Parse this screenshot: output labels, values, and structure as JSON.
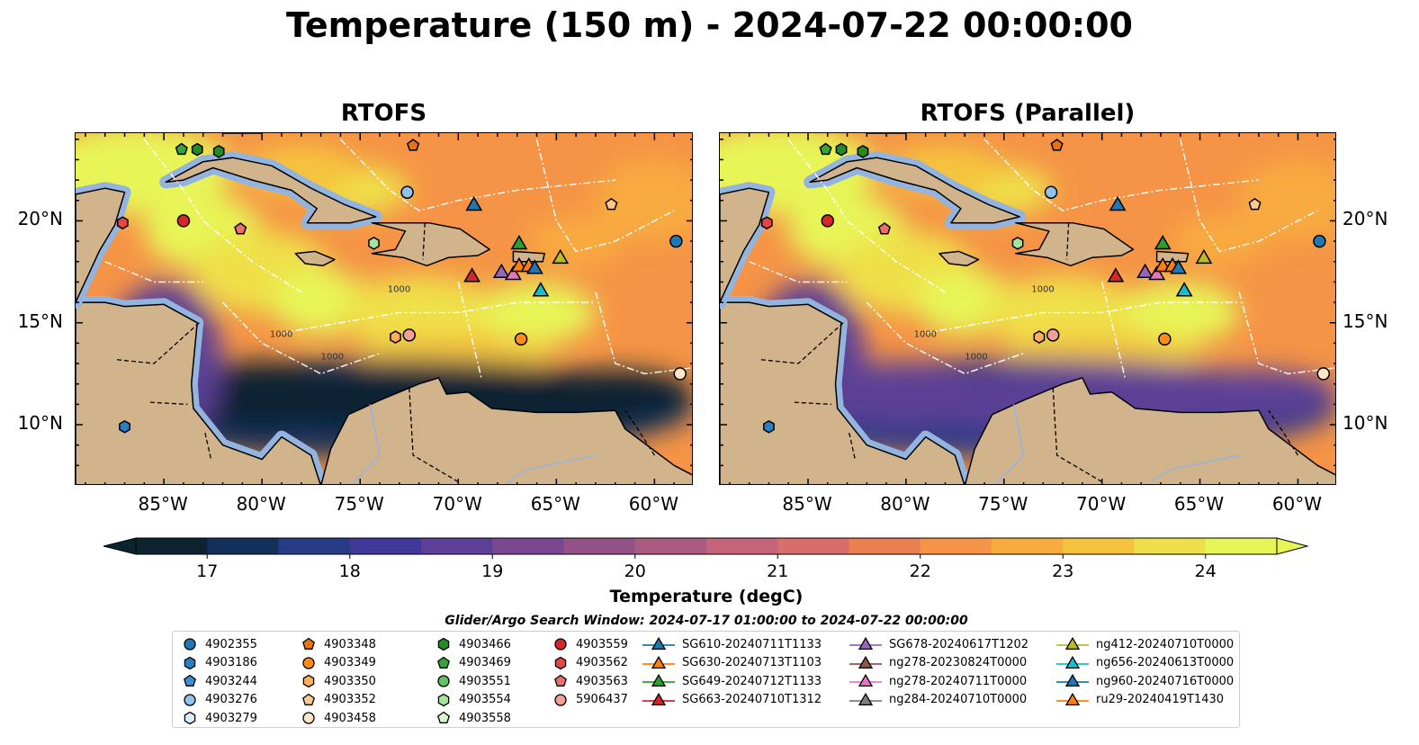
{
  "title": "Temperature (150 m) - 2024-07-22 00:00:00",
  "panels": [
    {
      "title": "RTOFS"
    },
    {
      "title": "RTOFS (Parallel)"
    }
  ],
  "axes": {
    "lon_labels": [
      "85°W",
      "80°W",
      "75°W",
      "70°W",
      "65°W",
      "60°W"
    ],
    "lat_labels": [
      "20°N",
      "15°N",
      "10°N"
    ]
  },
  "contour_labels": [
    "1000",
    "1000",
    "1000"
  ],
  "colorbar": {
    "label": "Temperature (degC)",
    "ticks": [
      "17",
      "18",
      "19",
      "20",
      "21",
      "22",
      "23",
      "24"
    ],
    "min": 16.5,
    "max": 24.5,
    "extend": "both",
    "colors": [
      "#0c2330",
      "#14305a",
      "#283b85",
      "#42389a",
      "#5c3f96",
      "#7a4890",
      "#935286",
      "#ac5b80",
      "#c4637a",
      "#d86e6b",
      "#ec8050",
      "#f59446",
      "#f8ab3f",
      "#f5c43e",
      "#efe04a",
      "#e7f556"
    ]
  },
  "search_window": "Glider/Argo Search Window: 2024-07-17 01:00:00 to 2024-07-22 00:00:00",
  "legend": {
    "items": [
      {
        "label": "4902355",
        "marker": "circle",
        "color": "#1f77b4"
      },
      {
        "label": "4903186",
        "marker": "hexagon",
        "color": "#2a7fc0"
      },
      {
        "label": "4903244",
        "marker": "pentagon",
        "color": "#3b8fd0"
      },
      {
        "label": "4903276",
        "marker": "circle",
        "color": "#8fc3ee"
      },
      {
        "label": "4903279",
        "marker": "hexagon",
        "color": "#d9ecfb"
      },
      {
        "label": "4903348",
        "marker": "pentagon",
        "color": "#e8730c"
      },
      {
        "label": "4903349",
        "marker": "circle",
        "color": "#ff8c1a"
      },
      {
        "label": "4903350",
        "marker": "hexagon",
        "color": "#ffae5a"
      },
      {
        "label": "4903352",
        "marker": "pentagon",
        "color": "#ffc98e"
      },
      {
        "label": "4903458",
        "marker": "circle",
        "color": "#ffe6c8"
      },
      {
        "label": "4903466",
        "marker": "hexagon",
        "color": "#228b22"
      },
      {
        "label": "4903469",
        "marker": "pentagon",
        "color": "#37a43a"
      },
      {
        "label": "4903551",
        "marker": "circle",
        "color": "#5fc45f"
      },
      {
        "label": "4903554",
        "marker": "hexagon",
        "color": "#a3e39a"
      },
      {
        "label": "4903558",
        "marker": "pentagon",
        "color": "#d8f8cc"
      },
      {
        "label": "4903559",
        "marker": "circle",
        "color": "#d62728"
      },
      {
        "label": "4903562",
        "marker": "hexagon",
        "color": "#e04646"
      },
      {
        "label": "4903563",
        "marker": "pentagon",
        "color": "#ec6f6f"
      },
      {
        "label": "5906437",
        "marker": "circle",
        "color": "#f4a09a"
      },
      {
        "label": "SG610-20240711T1133",
        "marker": "triangle",
        "color": "#1f77b4"
      },
      {
        "label": "SG630-20240713T1103",
        "marker": "triangle",
        "color": "#ff7f0e"
      },
      {
        "label": "SG649-20240712T1133",
        "marker": "triangle",
        "color": "#2ca02c"
      },
      {
        "label": "SG663-20240710T1312",
        "marker": "triangle",
        "color": "#d62728"
      },
      {
        "label": "SG678-20240617T1202",
        "marker": "triangle",
        "color": "#9467bd"
      },
      {
        "label": "ng278-20230824T0000",
        "marker": "triangle",
        "color": "#8c564b"
      },
      {
        "label": "ng278-20240711T0000",
        "marker": "triangle",
        "color": "#e377c2"
      },
      {
        "label": "ng284-20240710T0000",
        "marker": "triangle",
        "color": "#7f7f7f"
      },
      {
        "label": "ng412-20240710T0000",
        "marker": "triangle",
        "color": "#bcbd22"
      },
      {
        "label": "ng656-20240613T0000",
        "marker": "triangle",
        "color": "#17becf"
      },
      {
        "label": "ng960-20240716T0000",
        "marker": "triangle",
        "color": "#1f77b4"
      },
      {
        "label": "ru29-20240419T1430",
        "marker": "triangle",
        "color": "#ff7f0e"
      }
    ]
  },
  "map": {
    "lon_range": [
      -89.5,
      -58.0
    ],
    "lat_range": [
      7.0,
      24.3
    ],
    "land_color": "#d2b48c",
    "shelf_color": "#94b4e0",
    "observations": [
      {
        "ref": "4902355",
        "lon": -58.9,
        "lat": 19.0
      },
      {
        "ref": "4903186",
        "lon": -87.0,
        "lat": 9.9
      },
      {
        "ref": "4903276",
        "lon": -72.6,
        "lat": 21.4
      },
      {
        "ref": "4903348",
        "lon": -72.3,
        "lat": 23.7
      },
      {
        "ref": "4903349",
        "lon": -66.8,
        "lat": 14.2
      },
      {
        "ref": "4903352",
        "lon": -62.2,
        "lat": 20.8
      },
      {
        "ref": "4903350",
        "lon": -73.2,
        "lat": 14.3
      },
      {
        "ref": "4903458",
        "lon": -58.7,
        "lat": 12.5
      },
      {
        "ref": "4903466",
        "lon": -83.3,
        "lat": 23.5
      },
      {
        "ref": "4903469",
        "lon": -84.1,
        "lat": 23.5
      },
      {
        "ref": "4903466",
        "lon": -82.2,
        "lat": 23.4
      },
      {
        "ref": "4903554",
        "lon": -74.3,
        "lat": 18.9
      },
      {
        "ref": "4903559",
        "lon": -84.0,
        "lat": 20.0
      },
      {
        "ref": "4903562",
        "lon": -87.1,
        "lat": 19.9
      },
      {
        "ref": "4903563",
        "lon": -81.1,
        "lat": 19.6
      },
      {
        "ref": "5906437",
        "lon": -72.5,
        "lat": 14.4
      },
      {
        "ref": "SG610-20240711T1133",
        "lon": -69.2,
        "lat": 20.8
      },
      {
        "ref": "SG649-20240712T1133",
        "lon": -66.9,
        "lat": 18.9
      },
      {
        "ref": "SG663-20240710T1312",
        "lon": -69.3,
        "lat": 17.3
      },
      {
        "ref": "SG678-20240617T1202",
        "lon": -67.8,
        "lat": 17.5
      },
      {
        "ref": "ng278-20240711T0000",
        "lon": -67.2,
        "lat": 17.4
      },
      {
        "ref": "ru29-20240419T1430",
        "lon": -66.9,
        "lat": 17.8
      },
      {
        "ref": "SG630-20240713T1103",
        "lon": -66.4,
        "lat": 17.8
      },
      {
        "ref": "ng960-20240716T0000",
        "lon": -66.1,
        "lat": 17.7
      },
      {
        "ref": "ng656-20240613T0000",
        "lon": -65.8,
        "lat": 16.6
      },
      {
        "ref": "ng412-20240710T0000",
        "lon": -64.8,
        "lat": 18.2
      }
    ]
  }
}
